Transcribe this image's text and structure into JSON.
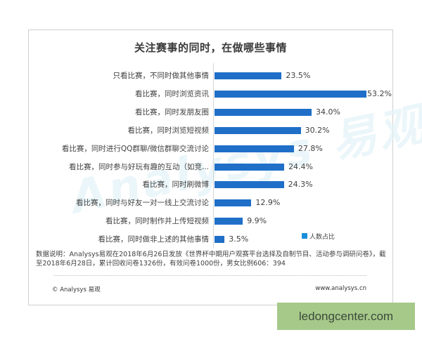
{
  "chart_data": {
    "type": "bar",
    "orientation": "horizontal",
    "title": "关注赛事的同时，在做哪些事情",
    "xlabel": "",
    "ylabel": "",
    "categories": [
      "只看比赛，不同时做其他事情",
      "看比赛，同时浏览资讯",
      "看比赛，同时发朋友圈",
      "看比赛，同时浏览短视频",
      "看比赛，同时进行QQ群聊/微信群聊交流讨论",
      "看比赛，同时参与好玩有趣的互动（如竞...",
      "看比赛，同时刷微博",
      "看比赛，同时与好友一对一线上交流讨论",
      "看比赛，同时制作并上传短视频",
      "看比赛，同时做非上述的其他事情"
    ],
    "series": [
      {
        "name": "人数占比",
        "color": "#1f6fc8",
        "values": [
          23.5,
          53.2,
          34.0,
          30.2,
          27.8,
          24.4,
          24.3,
          12.9,
          9.9,
          3.5
        ]
      }
    ],
    "value_labels": [
      "23.5%",
      "53.2%",
      "34.0%",
      "30.2%",
      "27.8%",
      "24.4%",
      "24.3%",
      "12.9%",
      "9.9%",
      "3.5%"
    ],
    "unit": "%",
    "grid": false,
    "legend_position": "bottom-right",
    "xlim": [
      0,
      55
    ]
  },
  "legend": {
    "label": "人数占比",
    "color": "#1a8fd8"
  },
  "note": "数据说明：Analysys易观在2018年6月26日发放《世界杯中期用户观赛平台选择及自制节目、活动参与调研问卷》，截至2018年6月28日，累计回收问卷1326份，有效问卷1000份，男女比例606：394",
  "watermark": "Analysys 易观分析",
  "footer": {
    "left": "© Analysys 易观",
    "right": "www.analysys.cn"
  },
  "stamp": "ledongcenter.com"
}
